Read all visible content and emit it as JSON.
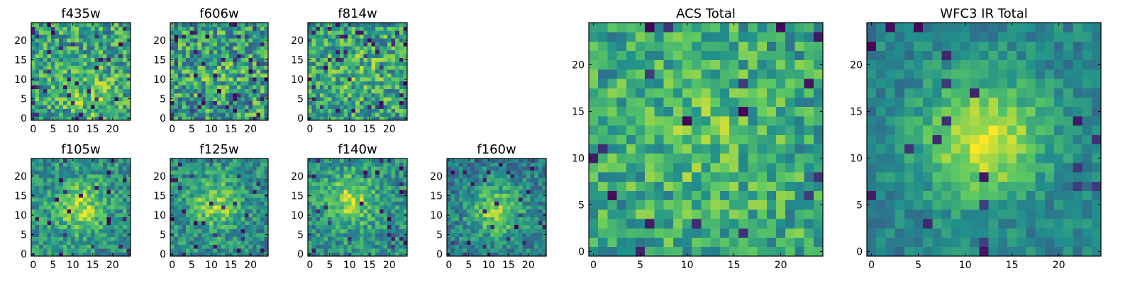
{
  "figure": {
    "description": "Grid of galaxy image cutout heatmaps"
  },
  "colormap": {
    "name": "viridis",
    "stops": [
      "#440154",
      "#3b528b",
      "#21918c",
      "#5ec962",
      "#fde725"
    ]
  },
  "chart_data": [
    {
      "type": "heatmap",
      "title": "f435w",
      "grid": [
        25,
        25
      ],
      "xlim": [
        0,
        24
      ],
      "ylim": [
        0,
        24
      ],
      "xticks": [
        0,
        5,
        10,
        15,
        20
      ],
      "yticks": [
        0,
        5,
        10,
        15,
        20
      ],
      "seed": 11,
      "peak": [
        14,
        6
      ],
      "peak_strength": 0.15,
      "noise": 0.55,
      "base": 0.58,
      "dark_frac": 0.05
    },
    {
      "type": "heatmap",
      "title": "f606w",
      "grid": [
        25,
        25
      ],
      "xlim": [
        0,
        24
      ],
      "ylim": [
        0,
        24
      ],
      "xticks": [
        0,
        5,
        10,
        15,
        20
      ],
      "yticks": [
        0,
        5,
        10,
        15,
        20
      ],
      "seed": 22,
      "peak": [
        12,
        12
      ],
      "peak_strength": 0.08,
      "noise": 0.6,
      "base": 0.55,
      "dark_frac": 0.07
    },
    {
      "type": "heatmap",
      "title": "f814w",
      "grid": [
        25,
        25
      ],
      "xlim": [
        0,
        24
      ],
      "ylim": [
        0,
        24
      ],
      "xticks": [
        0,
        5,
        10,
        15,
        20
      ],
      "yticks": [
        0,
        5,
        10,
        15,
        20
      ],
      "seed": 33,
      "peak": [
        12,
        12
      ],
      "peak_strength": 0.1,
      "noise": 0.55,
      "base": 0.58,
      "dark_frac": 0.05
    },
    {
      "type": "heatmap",
      "title": "f105w",
      "grid": [
        25,
        25
      ],
      "xlim": [
        0,
        24
      ],
      "ylim": [
        0,
        24
      ],
      "xticks": [
        0,
        5,
        10,
        15,
        20
      ],
      "yticks": [
        0,
        5,
        10,
        15,
        20
      ],
      "seed": 44,
      "peak": [
        12,
        12
      ],
      "peak_strength": 0.35,
      "noise": 0.4,
      "base": 0.5,
      "dark_frac": 0.04
    },
    {
      "type": "heatmap",
      "title": "f125w",
      "grid": [
        25,
        25
      ],
      "xlim": [
        0,
        24
      ],
      "ylim": [
        0,
        24
      ],
      "xticks": [
        0,
        5,
        10,
        15,
        20
      ],
      "yticks": [
        0,
        5,
        10,
        15,
        20
      ],
      "seed": 55,
      "peak": [
        11,
        13
      ],
      "peak_strength": 0.35,
      "noise": 0.4,
      "base": 0.48,
      "dark_frac": 0.05
    },
    {
      "type": "heatmap",
      "title": "f140w",
      "grid": [
        25,
        25
      ],
      "xlim": [
        0,
        24
      ],
      "ylim": [
        0,
        24
      ],
      "xticks": [
        0,
        5,
        10,
        15,
        20
      ],
      "yticks": [
        0,
        5,
        10,
        15,
        20
      ],
      "seed": 66,
      "peak": [
        10,
        14
      ],
      "peak_strength": 0.35,
      "noise": 0.4,
      "base": 0.5,
      "dark_frac": 0.04
    },
    {
      "type": "heatmap",
      "title": "f160w",
      "grid": [
        25,
        25
      ],
      "xlim": [
        0,
        24
      ],
      "ylim": [
        0,
        24
      ],
      "xticks": [
        0,
        5,
        10,
        15,
        20
      ],
      "yticks": [
        0,
        5,
        10,
        15,
        20
      ],
      "seed": 77,
      "peak": [
        12,
        11
      ],
      "peak_strength": 0.4,
      "noise": 0.35,
      "base": 0.42,
      "dark_frac": 0.05
    },
    {
      "type": "heatmap",
      "title": "ACS Total",
      "grid": [
        25,
        25
      ],
      "xlim": [
        0,
        24
      ],
      "ylim": [
        0,
        24
      ],
      "xticks": [
        0,
        5,
        10,
        15,
        20
      ],
      "yticks": [
        0,
        5,
        10,
        15,
        20
      ],
      "seed": 88,
      "peak": [
        12,
        12
      ],
      "peak_strength": 0.12,
      "noise": 0.45,
      "base": 0.6,
      "dark_frac": 0.03
    },
    {
      "type": "heatmap",
      "title": "WFC3 IR Total",
      "grid": [
        25,
        25
      ],
      "xlim": [
        0,
        24
      ],
      "ylim": [
        0,
        24
      ],
      "xticks": [
        0,
        5,
        10,
        15,
        20
      ],
      "yticks": [
        0,
        5,
        10,
        15,
        20
      ],
      "seed": 99,
      "peak": [
        12,
        12
      ],
      "peak_strength": 0.5,
      "noise": 0.25,
      "base": 0.45,
      "dark_frac": 0.03
    }
  ]
}
